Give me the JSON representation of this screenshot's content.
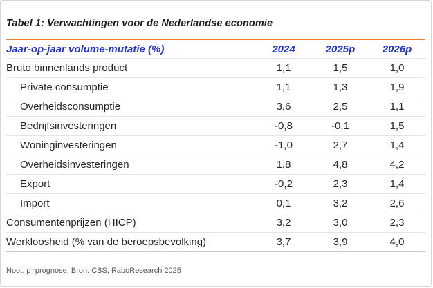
{
  "title": "Tabel 1: Verwachtingen voor de Nederlandse economie",
  "chart_data": {
    "type": "table",
    "title": "Tabel 1: Verwachtingen voor de Nederlandse economie",
    "header": {
      "label_column": "Jaar-op-jaar volume-mutatie (%)",
      "year_columns": [
        "2024",
        "2025p",
        "2026p"
      ]
    },
    "rows": [
      {
        "label": "Bruto binnenlands product",
        "indent": false,
        "values": [
          "1,1",
          "1,5",
          "1,0"
        ]
      },
      {
        "label": "Private consumptie",
        "indent": true,
        "values": [
          "1,1",
          "1,3",
          "1,9"
        ]
      },
      {
        "label": "Overheidsconsumptie",
        "indent": true,
        "values": [
          "3,6",
          "2,5",
          "1,1"
        ]
      },
      {
        "label": "Bedrijfsinvesteringen",
        "indent": true,
        "values": [
          "-0,8",
          "-0,1",
          "1,5"
        ]
      },
      {
        "label": "Woninginvesteringen",
        "indent": true,
        "values": [
          "-1,0",
          "2,7",
          "1,4"
        ]
      },
      {
        "label": "Overheidsinvesteringen",
        "indent": true,
        "values": [
          "1,8",
          "4,8",
          "4,2"
        ]
      },
      {
        "label": "Export",
        "indent": true,
        "values": [
          "-0,2",
          "2,3",
          "1,4"
        ]
      },
      {
        "label": "Import",
        "indent": true,
        "values": [
          "0,1",
          "3,2",
          "2,6"
        ]
      },
      {
        "label": "Consumentenprijzen (HICP)",
        "indent": false,
        "values": [
          "3,2",
          "3,0",
          "2,3"
        ]
      },
      {
        "label": "Werkloosheid (% van de beroepsbevolking)",
        "indent": false,
        "values": [
          "3,7",
          "3,9",
          "4,0"
        ]
      }
    ],
    "note": "Noot: p=prognose. Bron: CBS, RaboResearch 2025",
    "layout": {
      "grid": "horizontal-row-dividers",
      "legend_position": "none"
    }
  },
  "footnote": "Noot: p=prognose. Bron: CBS, RaboResearch 2025",
  "colors": {
    "accent_orange": "#ED7D31",
    "header_blue": "#2433CB",
    "title_text": "#1D1D1B",
    "body_text": "#262626",
    "row_divider": "#E6E4E2",
    "table_bottom_border": "#C9C9C9",
    "footnote_gray": "#575756",
    "frame_border": "#D6D6D6"
  }
}
